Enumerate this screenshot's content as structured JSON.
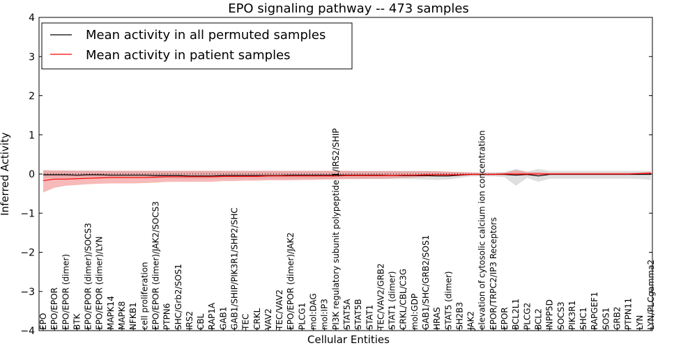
{
  "chart_data": {
    "type": "line",
    "title": "EPO signaling pathway -- 473 samples",
    "xlabel": "Cellular Entities",
    "ylabel": "Inferred Activity",
    "ylim": [
      -4,
      4
    ],
    "yticks": [
      "−4",
      "−3",
      "−2",
      "−1",
      "0",
      "1",
      "2",
      "3",
      "4"
    ],
    "legend_position": "top-left",
    "colors": {
      "permuted": "#000000",
      "patient": "#ff0000",
      "permuted_band": "#bfbfbf",
      "patient_band": "#f08080"
    },
    "categories": [
      "EPO",
      "EPO/EPOR",
      "EPO/EPOR (dimer)",
      "BTK",
      "EPO/EPOR (dimer)/SOCS3",
      "EPO/EPOR (dimer)/LYN",
      "MAPK14",
      "MAPK8",
      "NFKB1",
      "cell proliferation",
      "EPO/EPOR (dimer)/JAK2/SOCS3",
      "PTPN6",
      "SHC/Grb2/SOS1",
      "IRS2",
      "CBL",
      "RAP1A",
      "GAB1",
      "GAB1/SHIP/PIK3R1/SHP2/SHC",
      "TEC",
      "CRKL",
      "VAV2",
      "TEC/VAV2",
      "EPO/EPOR (dimer)/JAK2",
      "PLCG1",
      "mol:DAG",
      "mol:IP3",
      "PI3K regulatory subunit polypeptide 1/IRS2/SHIP",
      "STAT5A",
      "STAT5B",
      "STAT1",
      "TEC/VAV2/GRB2",
      "STAT1 (dimer)",
      "CRKL/CBL/C3G",
      "mol:GDP",
      "GAB1/SHC/GRB2/SOS1",
      "HRAS",
      "STAT5 (dimer)",
      "SH2B3",
      "JAK2",
      "elevation of cytosolic calcium ion concentration",
      "EPOR/TRPC2/IP3 Receptors",
      "EPOR",
      "BCL2L1",
      "PLCG2",
      "BCL2",
      "INPP5D",
      "SOCS3",
      "PIK3R1",
      "SHC1",
      "RAPGEF1",
      "SOS1",
      "GRB2",
      "PTPN11",
      "LYN",
      "LYN/PLCgamma2"
    ],
    "series": [
      {
        "name": "Mean activity in all permuted samples",
        "values": [
          -0.02,
          -0.02,
          -0.02,
          -0.03,
          -0.02,
          -0.02,
          -0.03,
          -0.03,
          -0.03,
          -0.03,
          -0.04,
          -0.04,
          -0.04,
          -0.05,
          -0.05,
          -0.05,
          -0.04,
          -0.04,
          -0.04,
          -0.04,
          -0.04,
          -0.04,
          -0.03,
          -0.03,
          -0.03,
          -0.03,
          -0.03,
          -0.03,
          -0.03,
          -0.03,
          -0.03,
          -0.04,
          -0.04,
          -0.04,
          -0.04,
          -0.05,
          -0.05,
          -0.03,
          -0.01,
          -0.01,
          -0.01,
          -0.01,
          -0.03,
          -0.01,
          -0.05,
          -0.01,
          -0.01,
          -0.01,
          -0.01,
          -0.01,
          -0.01,
          -0.01,
          -0.01,
          -0.01,
          -0.01
        ],
        "lower": [
          -0.1,
          -0.1,
          -0.1,
          -0.1,
          -0.1,
          -0.1,
          -0.11,
          -0.11,
          -0.11,
          -0.11,
          -0.11,
          -0.11,
          -0.12,
          -0.12,
          -0.12,
          -0.12,
          -0.12,
          -0.12,
          -0.12,
          -0.12,
          -0.12,
          -0.12,
          -0.12,
          -0.12,
          -0.12,
          -0.12,
          -0.12,
          -0.12,
          -0.12,
          -0.13,
          -0.13,
          -0.13,
          -0.13,
          -0.13,
          -0.14,
          -0.15,
          -0.14,
          -0.1,
          -0.06,
          -0.06,
          -0.06,
          -0.08,
          -0.3,
          -0.1,
          -0.2,
          -0.12,
          -0.12,
          -0.12,
          -0.12,
          -0.12,
          -0.12,
          -0.12,
          -0.12,
          -0.13,
          -0.15
        ],
        "upper": [
          0.09,
          0.09,
          0.09,
          0.09,
          0.09,
          0.09,
          0.08,
          0.08,
          0.08,
          0.08,
          0.08,
          0.08,
          0.08,
          0.08,
          0.08,
          0.08,
          0.08,
          0.08,
          0.08,
          0.08,
          0.08,
          0.08,
          0.08,
          0.08,
          0.08,
          0.08,
          0.08,
          0.08,
          0.08,
          0.08,
          0.08,
          0.08,
          0.08,
          0.08,
          0.08,
          0.07,
          0.06,
          0.05,
          0.04,
          0.04,
          0.04,
          0.05,
          0.13,
          0.06,
          0.13,
          0.08,
          0.08,
          0.08,
          0.08,
          0.08,
          0.08,
          0.08,
          0.08,
          0.08,
          0.08
        ]
      },
      {
        "name": "Mean activity in patient samples",
        "values": [
          -0.17,
          -0.13,
          -0.13,
          -0.12,
          -0.11,
          -0.1,
          -0.09,
          -0.09,
          -0.09,
          -0.09,
          -0.08,
          -0.07,
          -0.07,
          -0.07,
          -0.07,
          -0.07,
          -0.06,
          -0.06,
          -0.06,
          -0.06,
          -0.05,
          -0.05,
          -0.05,
          -0.05,
          -0.05,
          -0.05,
          -0.05,
          -0.04,
          -0.04,
          -0.04,
          -0.04,
          -0.04,
          -0.03,
          -0.03,
          -0.02,
          -0.02,
          -0.02,
          -0.02,
          -0.01,
          -0.01,
          -0.01,
          0.0,
          0.0,
          0.0,
          0.0,
          0.0,
          0.0,
          0.0,
          0.0,
          0.0,
          0.0,
          0.0,
          0.0,
          0.01,
          0.02
        ],
        "lower": [
          -0.47,
          -0.35,
          -0.3,
          -0.28,
          -0.26,
          -0.25,
          -0.24,
          -0.24,
          -0.24,
          -0.23,
          -0.22,
          -0.2,
          -0.2,
          -0.2,
          -0.2,
          -0.2,
          -0.18,
          -0.18,
          -0.17,
          -0.17,
          -0.16,
          -0.16,
          -0.16,
          -0.15,
          -0.15,
          -0.14,
          -0.14,
          -0.13,
          -0.13,
          -0.12,
          -0.12,
          -0.11,
          -0.1,
          -0.09,
          -0.07,
          -0.06,
          -0.06,
          -0.05,
          -0.03,
          -0.03,
          -0.03,
          -0.03,
          -0.04,
          -0.04,
          -0.03,
          -0.02,
          -0.02,
          -0.02,
          -0.02,
          -0.02,
          -0.02,
          -0.02,
          -0.02,
          -0.02,
          -0.02
        ],
        "upper": [
          0.1,
          0.09,
          0.09,
          0.08,
          0.08,
          0.08,
          0.08,
          0.08,
          0.08,
          0.08,
          0.08,
          0.08,
          0.08,
          0.08,
          0.08,
          0.08,
          0.08,
          0.08,
          0.08,
          0.08,
          0.08,
          0.08,
          0.08,
          0.08,
          0.08,
          0.08,
          0.08,
          0.08,
          0.07,
          0.07,
          0.07,
          0.07,
          0.07,
          0.07,
          0.07,
          0.07,
          0.06,
          0.05,
          0.04,
          0.03,
          0.03,
          0.03,
          0.1,
          0.05,
          0.05,
          0.03,
          0.03,
          0.03,
          0.03,
          0.03,
          0.03,
          0.03,
          0.03,
          0.04,
          0.06
        ]
      }
    ]
  }
}
